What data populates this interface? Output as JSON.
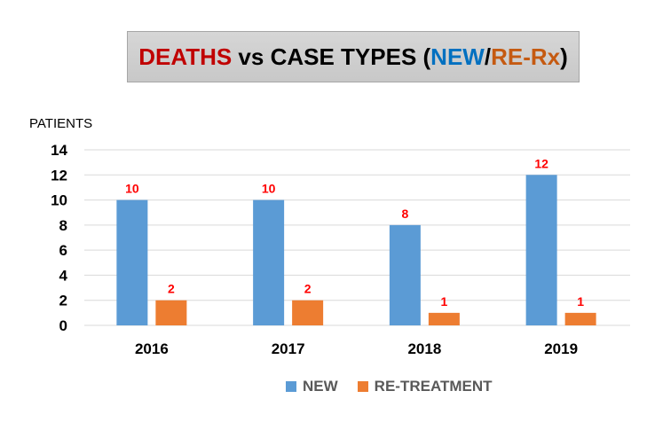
{
  "title": {
    "part1": "DEATHS",
    "part2": " vs CASE TYPES (",
    "part3": "NEW",
    "part4": "/",
    "part5": "RE-Rx",
    "part6": ")"
  },
  "colors": {
    "new": "#5b9bd5",
    "retreatment": "#ed7d31",
    "label": "#ff0000",
    "title_red": "#c00000",
    "title_blue": "#0070c0",
    "title_orange": "#c55a11"
  },
  "chart_data": {
    "type": "bar",
    "title": "DEATHS vs CASE TYPES (NEW/RE-Rx)",
    "ylabel": "PATIENTS",
    "xlabel": "",
    "categories": [
      "2016",
      "2017",
      "2018",
      "2019"
    ],
    "series": [
      {
        "name": "NEW",
        "values": [
          10,
          10,
          8,
          12
        ]
      },
      {
        "name": "RE-TREATMENT",
        "values": [
          2,
          2,
          1,
          1
        ]
      }
    ],
    "ylim": [
      0,
      14
    ],
    "yticks": [
      0,
      2,
      4,
      6,
      8,
      10,
      12,
      14
    ],
    "grid": true,
    "legend": "bottom"
  }
}
